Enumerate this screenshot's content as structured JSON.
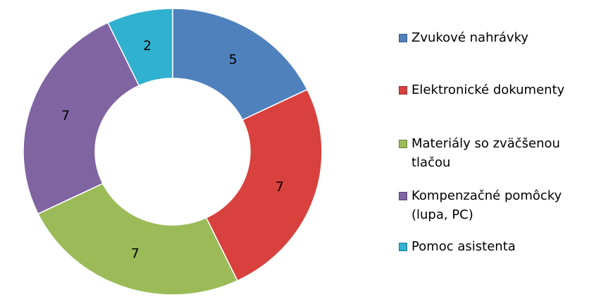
{
  "chart_data": {
    "type": "donut",
    "categories": [
      "Zvukové nahrávky",
      "Elektronické dokumenty",
      "Materiály so zväčšenou tlačou",
      "Kompenzačné pomôcky (lupa, PC)",
      "Pomoc asistenta"
    ],
    "values": [
      5,
      7,
      7,
      7,
      2
    ],
    "colors": [
      "#4f81bd",
      "#d8413e",
      "#9bbb59",
      "#8064a2",
      "#2fb1cf"
    ],
    "legend": "right"
  }
}
